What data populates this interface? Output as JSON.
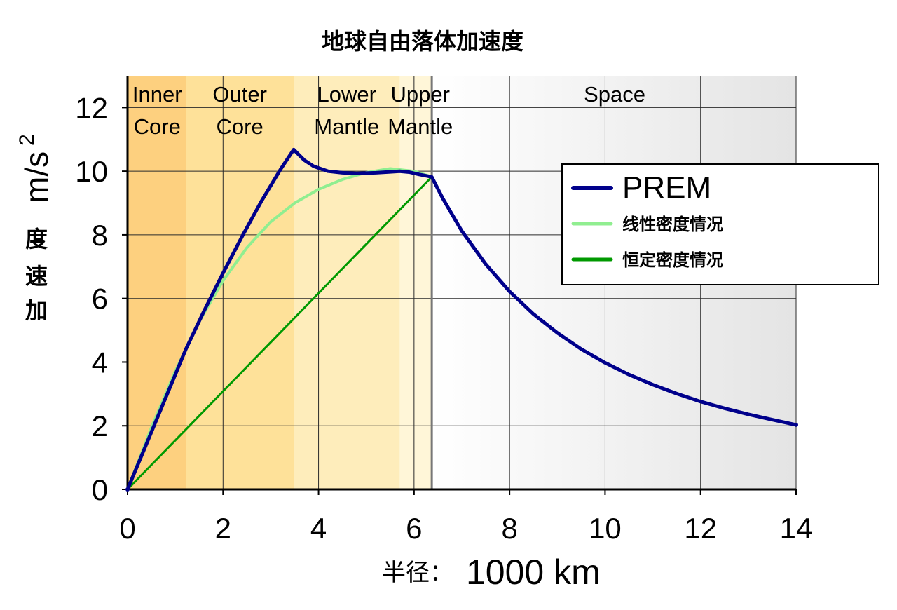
{
  "chart_data": {
    "type": "line",
    "title": "地球自由落体加速度",
    "xlabel_cn": "半径：",
    "xlabel_unit": "1000 km",
    "ylabel_cn": [
      "度",
      "速",
      "加"
    ],
    "ylabel_unit": "m/s",
    "ylabel_sup": "2",
    "xlim": [
      0,
      14
    ],
    "ylim": [
      0,
      13
    ],
    "xticks": [
      "0",
      "2",
      "4",
      "6",
      "8",
      "10",
      "12",
      "14"
    ],
    "yticks": [
      "0",
      "2",
      "4",
      "6",
      "8",
      "10",
      "12"
    ],
    "grid": true,
    "legend_position": "right",
    "regions": [
      {
        "name": "inner-core",
        "line1": "Inner",
        "line2": "Core",
        "x0": 0,
        "x1": 1.22,
        "label_x": 0.62,
        "color": "#fdd07f"
      },
      {
        "name": "outer-core",
        "line1": "Outer",
        "line2": "Core",
        "x0": 1.22,
        "x1": 3.48,
        "label_x": 2.35,
        "color": "#fee199"
      },
      {
        "name": "lower-mantle",
        "line1": "Lower",
        "line2": "Mantle",
        "x0": 3.48,
        "x1": 5.7,
        "label_x": 4.59,
        "color": "#feedbb"
      },
      {
        "name": "upper-mantle",
        "line1": "Upper",
        "line2": "Mantle",
        "x0": 5.7,
        "x1": 6.371,
        "label_x": 6.13,
        "color": "#fff6d8"
      },
      {
        "name": "space",
        "line1": "Space",
        "line2": "",
        "x0": 6.371,
        "x1": 14,
        "label_x": 10.2,
        "color": "gradient"
      }
    ],
    "series": [
      {
        "name": "PREM",
        "color": "#00008b",
        "width": 5,
        "x": [
          0,
          1.22,
          1.6,
          2.0,
          2.4,
          2.8,
          3.2,
          3.48,
          3.7,
          3.9,
          4.2,
          4.5,
          4.8,
          5.2,
          5.5,
          5.7,
          5.9,
          6.1,
          6.371,
          6.6,
          7.0,
          7.5,
          8.0,
          8.5,
          9.0,
          9.5,
          10.0,
          10.5,
          11.0,
          11.5,
          12.0,
          12.5,
          13.0,
          13.5,
          14.0
        ],
        "values": [
          0,
          4.4,
          5.6,
          6.8,
          7.95,
          9.05,
          10.05,
          10.68,
          10.35,
          10.15,
          10.0,
          9.95,
          9.93,
          9.95,
          9.98,
          10.0,
          9.97,
          9.9,
          9.82,
          9.15,
          8.12,
          7.08,
          6.22,
          5.51,
          4.92,
          4.41,
          3.98,
          3.61,
          3.29,
          3.01,
          2.76,
          2.55,
          2.36,
          2.19,
          2.03
        ]
      },
      {
        "name": "线性密度情况",
        "color": "#90ee90",
        "width": 4,
        "x": [
          0,
          0.5,
          1.0,
          1.5,
          2.0,
          2.5,
          3.0,
          3.5,
          4.0,
          4.5,
          5.0,
          5.5,
          6.0,
          6.371
        ],
        "values": [
          0,
          1.95,
          3.72,
          5.27,
          6.56,
          7.6,
          8.41,
          9.0,
          9.43,
          9.74,
          9.96,
          10.08,
          10.0,
          9.82
        ]
      },
      {
        "name": "恒定密度情况",
        "color": "#009900",
        "width": 3,
        "x": [
          0,
          6.371
        ],
        "values": [
          0,
          9.82
        ]
      }
    ]
  }
}
